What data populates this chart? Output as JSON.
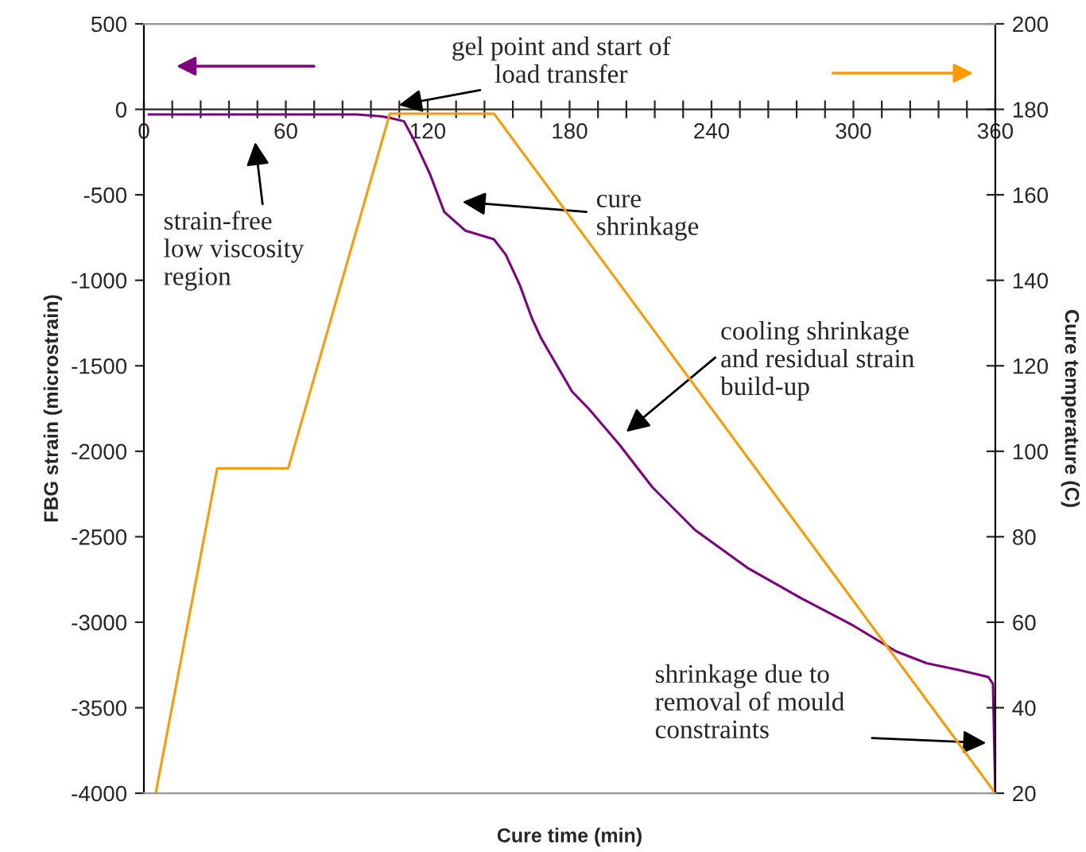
{
  "chart_data": {
    "type": "line",
    "xlabel": "Cure time (min)",
    "ylabel": "FBG strain (microstrain)",
    "y2label": "Cure temperature (C)",
    "xlim": [
      0,
      360
    ],
    "xticks": [
      0,
      {
        "value": 12,
        "label": null
      },
      {
        "value": 24,
        "label": null
      },
      {
        "value": 36,
        "label": null
      },
      {
        "value": 48,
        "label": null
      },
      60,
      {
        "value": 72,
        "label": null
      },
      {
        "value": 84,
        "label": null
      },
      {
        "value": 96,
        "label": null
      },
      {
        "value": 108,
        "label": null
      },
      120,
      {
        "value": 132,
        "label": null
      },
      {
        "value": 144,
        "label": null
      },
      {
        "value": 156,
        "label": null
      },
      {
        "value": 168,
        "label": null
      },
      180,
      {
        "value": 192,
        "label": null
      },
      {
        "value": 204,
        "label": null
      },
      {
        "value": 216,
        "label": null
      },
      {
        "value": 228,
        "label": null
      },
      240,
      {
        "value": 252,
        "label": null
      },
      {
        "value": 264,
        "label": null
      },
      {
        "value": 276,
        "label": null
      },
      {
        "value": 288,
        "label": null
      },
      300,
      {
        "value": 312,
        "label": null
      },
      {
        "value": 324,
        "label": null
      },
      {
        "value": 336,
        "label": null
      },
      {
        "value": 348,
        "label": null
      },
      360
    ],
    "ylim": [
      -4000,
      500
    ],
    "yticks": [
      -4000,
      -3500,
      -3000,
      -2500,
      -2000,
      -1500,
      -1000,
      -500,
      0,
      500
    ],
    "y2lim": [
      20,
      200
    ],
    "y2ticks": [
      20,
      40,
      60,
      80,
      100,
      120,
      140,
      160,
      180,
      200
    ],
    "grid": false,
    "series": [
      {
        "color": "#800080",
        "x": [
          2,
          20,
          60,
          90,
          100,
          104,
          110,
          115,
          121,
          127,
          136,
          148,
          153,
          159,
          164,
          168,
          181,
          188,
          201,
          215,
          233,
          255,
          278,
          300,
          318,
          331,
          345,
          357,
          359,
          360
        ],
        "values": [
          -30,
          -30,
          -30,
          -30,
          -40,
          -50,
          -70,
          -200,
          -380,
          -600,
          -710,
          -760,
          -850,
          -1030,
          -1220,
          -1340,
          -1650,
          -1750,
          -1960,
          -2210,
          -2460,
          -2680,
          -2860,
          -3020,
          -3170,
          -3240,
          -3280,
          -3320,
          -3360,
          -4000
        ]
      },
      {
        "color": "#ff9900",
        "axis": "y2",
        "x": [
          5,
          31,
          61,
          104,
          148,
          360
        ],
        "values": [
          20,
          96,
          96,
          179,
          179,
          20
        ]
      }
    ],
    "annotations": [
      {
        "text": "gel point and start of\nload transfer",
        "x": 106,
        "y": 20
      },
      "strain-free\nlow viscosity\nregion",
      "cure\nshrinkage",
      "cooling shrinkage\nand residual strain\nbuild-up",
      {
        "text": "shrinkage due to\nremoval of mould\nconstraints",
        "x": 358,
        "y": -3707
      }
    ]
  }
}
